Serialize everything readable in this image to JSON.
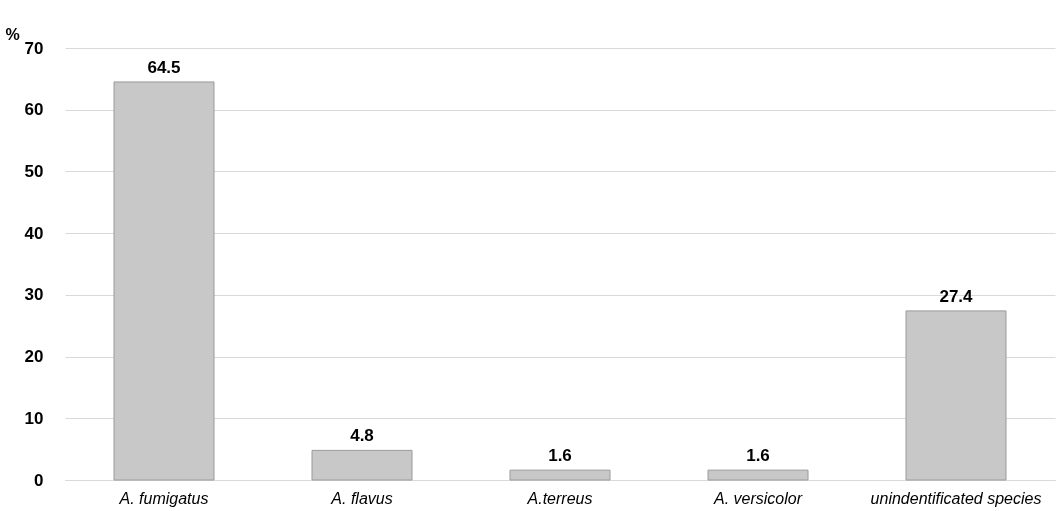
{
  "chart_data": {
    "type": "bar",
    "ylabel": "%",
    "categories": [
      "A. fumigatus",
      "A. flavus",
      "A.terreus",
      "A. versicolor",
      "unindentificated species"
    ],
    "values": [
      64.5,
      4.8,
      1.6,
      1.6,
      27.4
    ],
    "color": "#c8c8c8",
    "ylim": [
      0,
      70
    ],
    "yticks": [
      0,
      10,
      20,
      30,
      40,
      50,
      60,
      70
    ],
    "grid": "y",
    "data_labels": true
  }
}
